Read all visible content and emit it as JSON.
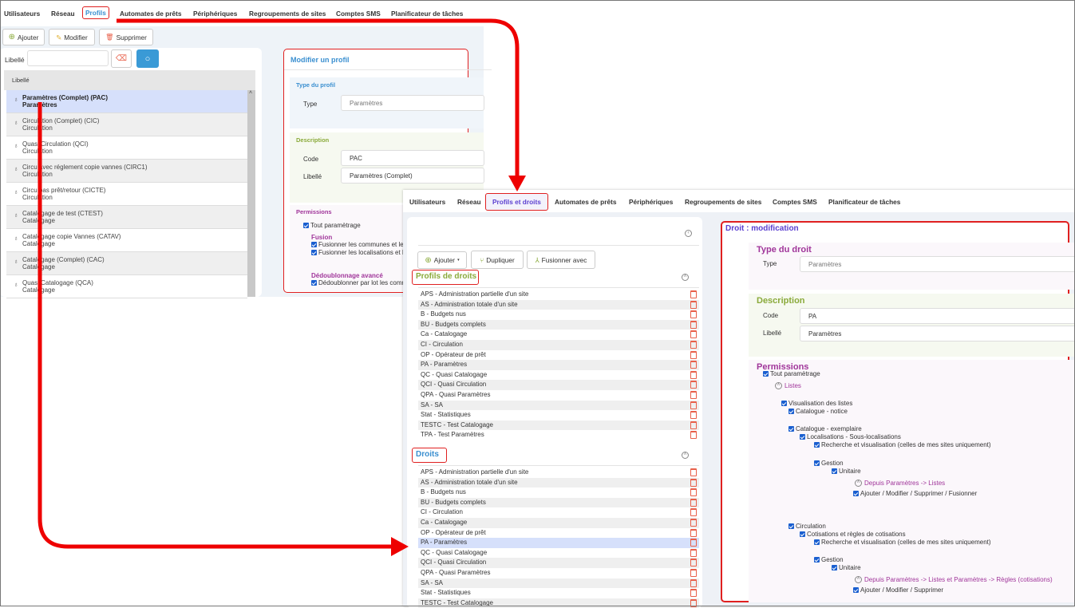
{
  "old_screen": {
    "tabs": [
      "Utilisateurs",
      "Réseau",
      "Profils",
      "Automates de prêts",
      "Périphériques",
      "Regroupements de sites",
      "Comptes SMS",
      "Planificateur de tâches"
    ],
    "active_tab": "Profils",
    "toolbar": {
      "add": "Ajouter",
      "edit": "Modifier",
      "delete": "Supprimer"
    },
    "filter": {
      "label": "Libellé",
      "value": ""
    },
    "list_header": "Libellé",
    "profiles": [
      {
        "title": "Paramètres (Complet) (PAC)",
        "type": "Paramètres",
        "selected": true
      },
      {
        "title": "Circulation (Complet) (CIC)",
        "type": "Circulation"
      },
      {
        "title": "Quasi Circulation (QCI)",
        "type": "Circulation"
      },
      {
        "title": "Circu avec réglement copie vannes (CIRC1)",
        "type": "Circulation"
      },
      {
        "title": "Circu pas prêt/retour (CICTE)",
        "type": "Circulation"
      },
      {
        "title": "Catalogage de test (CTEST)",
        "type": "Catalogage"
      },
      {
        "title": "Catalogage copie Vannes (CATAV)",
        "type": "Catalogage"
      },
      {
        "title": "Catalogage (Complet) (CAC)",
        "type": "Catalogage"
      },
      {
        "title": "Quasi Catalogage (QCA)",
        "type": "Catalogage"
      }
    ],
    "edit_panel": {
      "title": "Modifier un profil",
      "type_section": "Type du profil",
      "type_label": "Type",
      "type_value": "Paramètres",
      "desc_section": "Description",
      "code_label": "Code",
      "code_value": "PAC",
      "libelle_label": "Libellé",
      "libelle_value": "Paramètres (Complet)",
      "perm_section": "Permissions",
      "all": "Tout paramètrage",
      "fusion": "Fusion",
      "fusion_1": "Fusionner les communes et les",
      "fusion_2": "Fusionner les localisations et les",
      "dedup": "Dédoublonnage avancé",
      "dedup_1": "Dédoublonner par lot les comm"
    }
  },
  "new_screen": {
    "tabs": [
      "Utilisateurs",
      "Réseau",
      "Profils et droits",
      "Automates de prêts",
      "Périphériques",
      "Regroupements de sites",
      "Comptes SMS",
      "Planificateur de tâches"
    ],
    "active_tab": "Profils et droits",
    "toolbar": {
      "add": "Ajouter",
      "duplicate": "Dupliquer",
      "merge": "Fusionner avec"
    },
    "profiles_section": "Profils de droits",
    "profiles": [
      "APS - Administration partielle d'un site",
      "AS - Administration totale d'un site",
      "B - Budgets nus",
      "BU - Budgets complets",
      "Ca - Catalogage",
      "CI - Circulation",
      "OP - Opérateur de prêt",
      "PA - Paramètres",
      "QC - Quasi Catalogage",
      "QCI - Quasi Circulation",
      "QPA - Quasi Paramètres",
      "SA - SA",
      "Stat - Statistiques",
      "TESTC - Test Catalogage",
      "TPA - Test Paramètres"
    ],
    "rights_section": "Droits",
    "rights": [
      "APS - Administration partielle d'un site",
      "AS - Administration totale d'un site",
      "B - Budgets nus",
      "BU - Budgets complets",
      "CI - Circulation",
      "Ca - Catalogage",
      "OP - Opérateur de prêt",
      "PA - Paramètres",
      "QC - Quasi Catalogage",
      "QCI - Quasi Circulation",
      "QPA - Quasi Paramètres",
      "SA - SA",
      "Stat - Statistiques",
      "TESTC - Test Catalogage"
    ],
    "selected_right": "PA - Paramètres",
    "edit_panel": {
      "title": "Droit : modification",
      "type_section": "Type du droit",
      "type_label": "Type",
      "type_value": "Paramètres",
      "desc_section": "Description",
      "code_label": "Code",
      "code_value": "PA",
      "libelle_label": "Libellé",
      "libelle_value": "Paramètres",
      "perm_section": "Permissions",
      "permissions": [
        {
          "label": "Tout paramètrage",
          "kind": "checkbox",
          "checked": true
        },
        {
          "label": "Listes",
          "kind": "group"
        },
        {
          "label": "Visualisation des listes",
          "kind": "checkbox",
          "checked": true
        },
        {
          "label": "Catalogue - notice",
          "kind": "checkbox",
          "checked": true
        },
        {
          "label": "Catalogue - exemplaire",
          "kind": "checkbox",
          "checked": true
        },
        {
          "label": "Localisations - Sous-localisations",
          "kind": "checkbox",
          "checked": true
        },
        {
          "label": "Recherche et visualisation (celles de mes sites uniquement)",
          "kind": "checkbox",
          "checked": true
        },
        {
          "label": "Gestion",
          "kind": "checkbox",
          "checked": true
        },
        {
          "label": "Unitaire",
          "kind": "checkbox",
          "checked": true
        },
        {
          "label": "Depuis Paramètres -> Listes",
          "kind": "group"
        },
        {
          "label": "Ajouter / Modifier / Supprimer / Fusionner",
          "kind": "checkbox",
          "checked": true
        },
        {
          "label": "Circulation",
          "kind": "checkbox",
          "checked": true
        },
        {
          "label": "Cotisations et règles de cotisations",
          "kind": "checkbox",
          "checked": true
        },
        {
          "label": "Recherche et visualisation (celles de mes sites uniquement)",
          "kind": "checkbox",
          "checked": true
        },
        {
          "label": "Gestion",
          "kind": "checkbox",
          "checked": true
        },
        {
          "label": "Unitaire",
          "kind": "checkbox",
          "checked": true
        },
        {
          "label": "Depuis Paramètres -> Listes et Paramètres -> Règles (cotisations)",
          "kind": "group"
        },
        {
          "label": "Ajouter / Modifier / Supprimer",
          "kind": "checkbox",
          "checked": true
        }
      ]
    }
  },
  "colors": {
    "annotation": "#e02020",
    "active_tab_old": "#3a8fd0",
    "active_tab_new": "#5b3fd0",
    "section_green": "#8aaa3a",
    "section_purple": "#a0359a",
    "droits_blue": "#3a8fd0",
    "selected_row": "#d6e0fb"
  }
}
